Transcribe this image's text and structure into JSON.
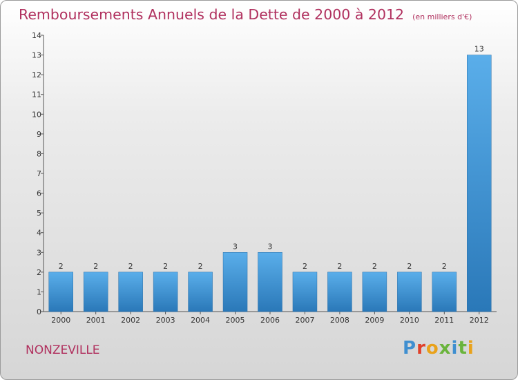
{
  "header": {
    "title": "Remboursements Annuels de la Dette de 2000 à 2012",
    "unit": "(en milliers d'€)"
  },
  "footer": {
    "commune": "NONZEVILLE",
    "logo": "Proxiti"
  },
  "colors": {
    "title": "#b0305e",
    "bar_top": "#5aaeea",
    "bar_bottom": "#2a78b8",
    "logo_letters": [
      "#3f8fd0",
      "#e0402a",
      "#e9a21b",
      "#6ab43c",
      "#3f8fd0",
      "#6ab43c",
      "#e9a21b"
    ]
  },
  "chart_data": {
    "type": "bar",
    "categories": [
      "2000",
      "2001",
      "2002",
      "2003",
      "2004",
      "2005",
      "2006",
      "2007",
      "2008",
      "2009",
      "2010",
      "2011",
      "2012"
    ],
    "values": [
      2,
      2,
      2,
      2,
      2,
      3,
      3,
      2,
      2,
      2,
      2,
      2,
      13
    ],
    "title": "Remboursements Annuels de la Dette de 2000 à 2012",
    "ylim": [
      0,
      14
    ],
    "yticks": [
      "0",
      "1",
      "2",
      "3",
      "4",
      "5",
      "6",
      "7",
      "8",
      "9",
      "10",
      "11",
      "12",
      "13",
      "14"
    ],
    "grid": false
  }
}
